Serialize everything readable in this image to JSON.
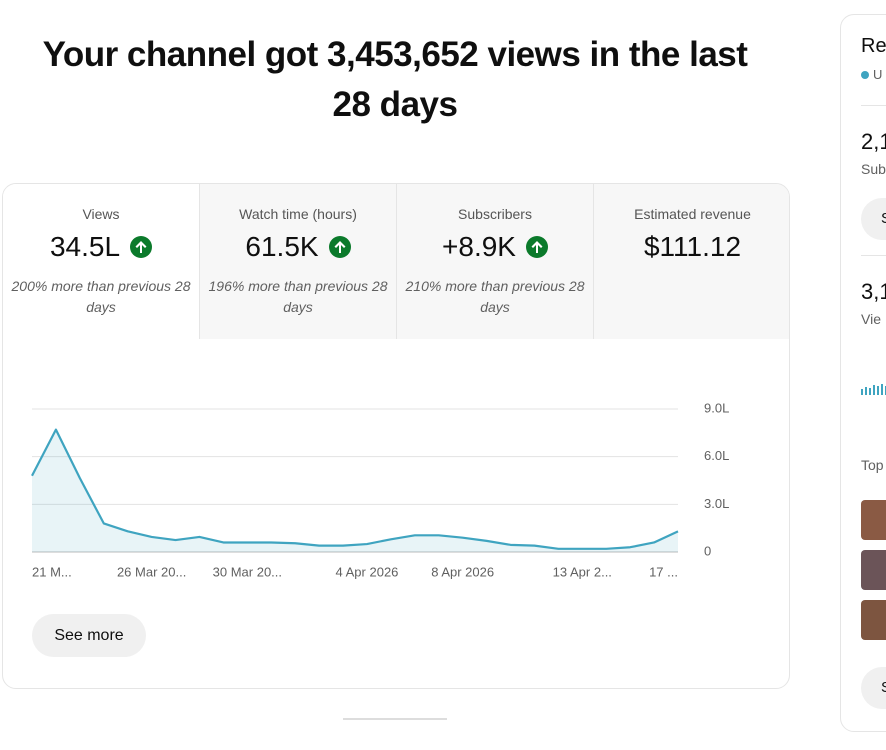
{
  "headline": "Your channel got 3,453,652 views in the last 28 days",
  "metrics": [
    {
      "label": "Views",
      "value": "34.5L",
      "change": "200% more than previous 28 days"
    },
    {
      "label": "Watch time (hours)",
      "value": "61.5K",
      "change": "196% more than previous 28 days"
    },
    {
      "label": "Subscribers",
      "value": "+8.9K",
      "change": "210% more than previous 28 days"
    },
    {
      "label": "Estimated revenue",
      "value": "$111.12"
    }
  ],
  "chart_data": {
    "type": "line",
    "categories": [
      "21 M...",
      null,
      null,
      null,
      null,
      "26 Mar 20...",
      null,
      null,
      null,
      "30 Mar 20...",
      null,
      null,
      null,
      null,
      "4 Apr 2026",
      null,
      null,
      null,
      "8 Apr 2026",
      null,
      null,
      null,
      null,
      "13 Apr 2...",
      null,
      null,
      null,
      "17 ..."
    ],
    "values": [
      4.8,
      7.7,
      4.65,
      1.8,
      1.3,
      0.95,
      0.75,
      0.95,
      0.6,
      0.6,
      0.6,
      0.55,
      0.4,
      0.4,
      0.5,
      0.8,
      1.05,
      1.05,
      0.9,
      0.7,
      0.45,
      0.4,
      0.2,
      0.2,
      0.2,
      0.3,
      0.6,
      1.3
    ],
    "color": "#3fa4c0",
    "ylim": [
      0,
      9
    ],
    "yticks": [
      0,
      {
        "value": 3,
        "label": "3.0L"
      },
      {
        "value": 6,
        "label": "6.0L"
      },
      {
        "value": 9,
        "label": "9.0L"
      }
    ],
    "grid": true
  },
  "see_more": "See more",
  "side_panel": {
    "title": "Re",
    "subtitle": "U",
    "stat1_value": "2,1",
    "stat1_label": "Sub",
    "stat1_button": "S",
    "stat2_value": "3,1",
    "stat2_label": "Vie",
    "section": "Top",
    "bottom_button": "S"
  }
}
